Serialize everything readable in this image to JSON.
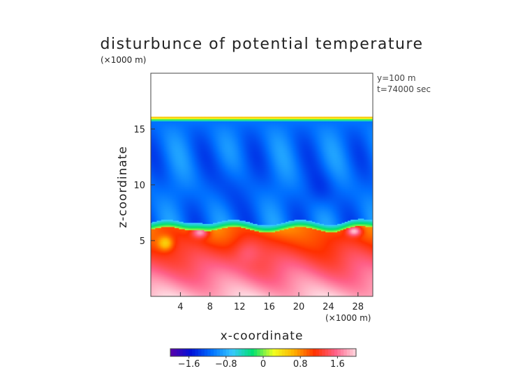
{
  "chart_data": {
    "type": "heatmap",
    "title": "disturbunce of potential temperature",
    "z_scale_label": "(×1000 m)",
    "x_scale_label": "(×1000 m)",
    "xlabel": "x-coordinate",
    "ylabel": "z-coordinate",
    "annotations": [
      "y=100 m",
      "t=74000 sec"
    ],
    "xlim": [
      0,
      30
    ],
    "ylim": [
      0,
      20
    ],
    "x_ticks": [
      4,
      8,
      12,
      16,
      20,
      24,
      28
    ],
    "y_ticks": [
      5,
      10,
      15
    ],
    "colorbar": {
      "range": [
        -2.0,
        2.0
      ],
      "ticks": [
        -1.6,
        -0.8,
        0,
        0.8,
        1.6
      ],
      "tick_labels": [
        "−1.6",
        "−0.8",
        "0",
        "0.8",
        "1.6"
      ],
      "colors": [
        "#5a00a8",
        "#0010d8",
        "#0070ff",
        "#38c8ff",
        "#00e070",
        "#f0ff20",
        "#ffb000",
        "#ff3000",
        "#ff6088",
        "#ffd8e0"
      ]
    },
    "field_top_z": 16.1,
    "upper_layer_value": -1.1,
    "inversion_z": 6.2,
    "lower_layer_top_value": 0.9,
    "surface_value": 1.9
  }
}
